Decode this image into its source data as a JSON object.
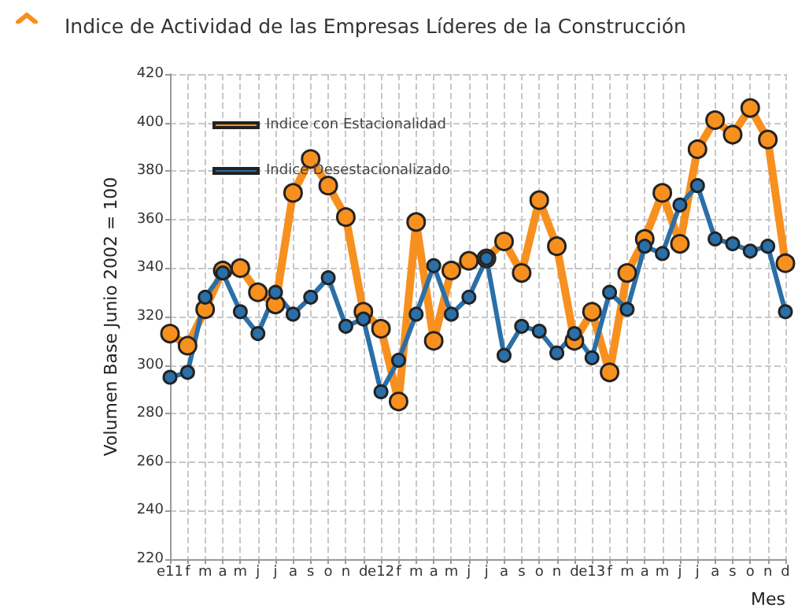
{
  "chart_data": {
    "type": "line",
    "title": "Indice de Actividad de las Empresas Líderes de la Construcción",
    "xlabel": "Mes",
    "ylabel": "Volumen Base Junio 2002 = 100",
    "categories": [
      "e11",
      "f",
      "m",
      "a",
      "m",
      "j",
      "j",
      "a",
      "s",
      "o",
      "n",
      "d",
      "e12",
      "f",
      "m",
      "a",
      "m",
      "j",
      "j",
      "a",
      "s",
      "o",
      "n",
      "d",
      "e13",
      "f",
      "m",
      "a",
      "m",
      "j",
      "j",
      "a",
      "s",
      "o",
      "n",
      "d"
    ],
    "series": [
      {
        "name": "Indice con Estacionalidad",
        "color": "#f7901e",
        "values": [
          313,
          308,
          323,
          339,
          340,
          330,
          325,
          371,
          385,
          374,
          361,
          322,
          315,
          285,
          359,
          310,
          339,
          343,
          344,
          351,
          338,
          368,
          349,
          310,
          322,
          297,
          338,
          352,
          371,
          350,
          389,
          401,
          395,
          406,
          393,
          342
        ]
      },
      {
        "name": "Indice Desestacionalizado",
        "color": "#2a6fa8",
        "values": [
          295,
          297,
          328,
          338,
          322,
          313,
          330,
          321,
          328,
          336,
          316,
          319,
          289,
          302,
          321,
          341,
          321,
          328,
          344,
          304,
          316,
          314,
          305,
          313,
          303,
          330,
          323,
          349,
          346,
          366,
          374,
          352,
          350,
          347,
          349,
          322
        ]
      }
    ],
    "ylim": [
      220,
      420
    ],
    "yticks": [
      220,
      240,
      260,
      280,
      300,
      320,
      340,
      360,
      380,
      400,
      420
    ],
    "grid": true,
    "legend": "top left",
    "marker": "circle",
    "line_style": "solid"
  }
}
